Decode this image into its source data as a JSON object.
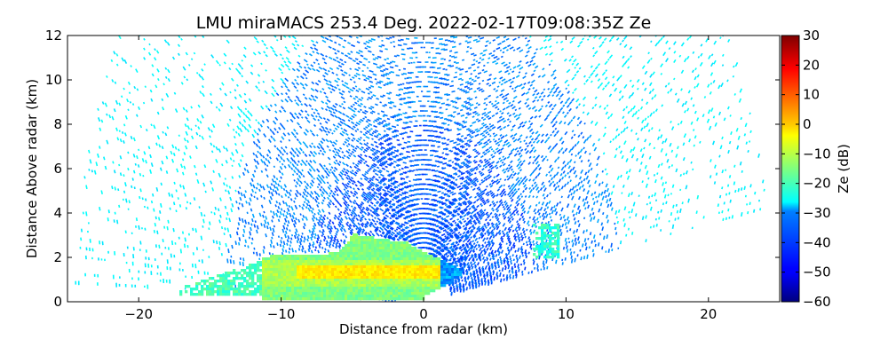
{
  "chart_data": {
    "type": "heatmap",
    "title": "LMU miraMACS 253.4 Deg. 2022-02-17T09:08:35Z  Ze",
    "xlabel": "Distance from radar (km)",
    "ylabel": "Distance Above radar  (km)",
    "xlim": [
      -25,
      25
    ],
    "ylim": [
      0,
      12
    ],
    "x_ticks": [
      "−20",
      "−10",
      "0",
      "10",
      "20"
    ],
    "x_tick_values": [
      -20,
      -10,
      0,
      10,
      20
    ],
    "y_ticks": [
      "0",
      "2",
      "4",
      "6",
      "8",
      "10",
      "12"
    ],
    "y_tick_values": [
      0,
      2,
      4,
      6,
      8,
      10,
      12
    ],
    "colorbar": {
      "label": "Ze (dB)",
      "range": [
        -60,
        30
      ],
      "ticks": [
        "−60",
        "−50",
        "−40",
        "−30",
        "−20",
        "−10",
        "0",
        "10",
        "20",
        "30"
      ],
      "tick_values": [
        -60,
        -50,
        -40,
        -30,
        -20,
        -10,
        0,
        10,
        20,
        30
      ],
      "colormap": "jet"
    },
    "scan": {
      "radar_position_km": [
        0,
        0
      ],
      "max_range_km": 24.5,
      "low_elevation_right_deg": 10,
      "horizon_left_deg": 178
    },
    "regions": [
      {
        "name": "noise-outer",
        "range_km": [
          14,
          24.5
        ],
        "ze_db": -27
      },
      {
        "name": "noise-inner",
        "range_km": [
          4,
          14
        ],
        "ze_db": -37
      },
      {
        "name": "cloud-main",
        "x_km": [
          -11.5,
          2.5
        ],
        "z_km": [
          0.2,
          3.2
        ],
        "ze_db": -15,
        "peak_ze_db": -2,
        "peak_z_km": 1.4
      },
      {
        "name": "cloud-left",
        "x_km": [
          -17.5,
          -11
        ],
        "z_km": [
          0.3,
          2.3
        ],
        "ze_db": -20
      },
      {
        "name": "cloud-right",
        "x_km": [
          7.5,
          9.5
        ],
        "z_km": [
          2.0,
          4.0
        ],
        "ze_db": -22
      },
      {
        "name": "weak-echo",
        "x_km": [
          0,
          5
        ],
        "z_km": [
          0.5,
          4.5
        ],
        "ze_db": -45
      }
    ]
  }
}
